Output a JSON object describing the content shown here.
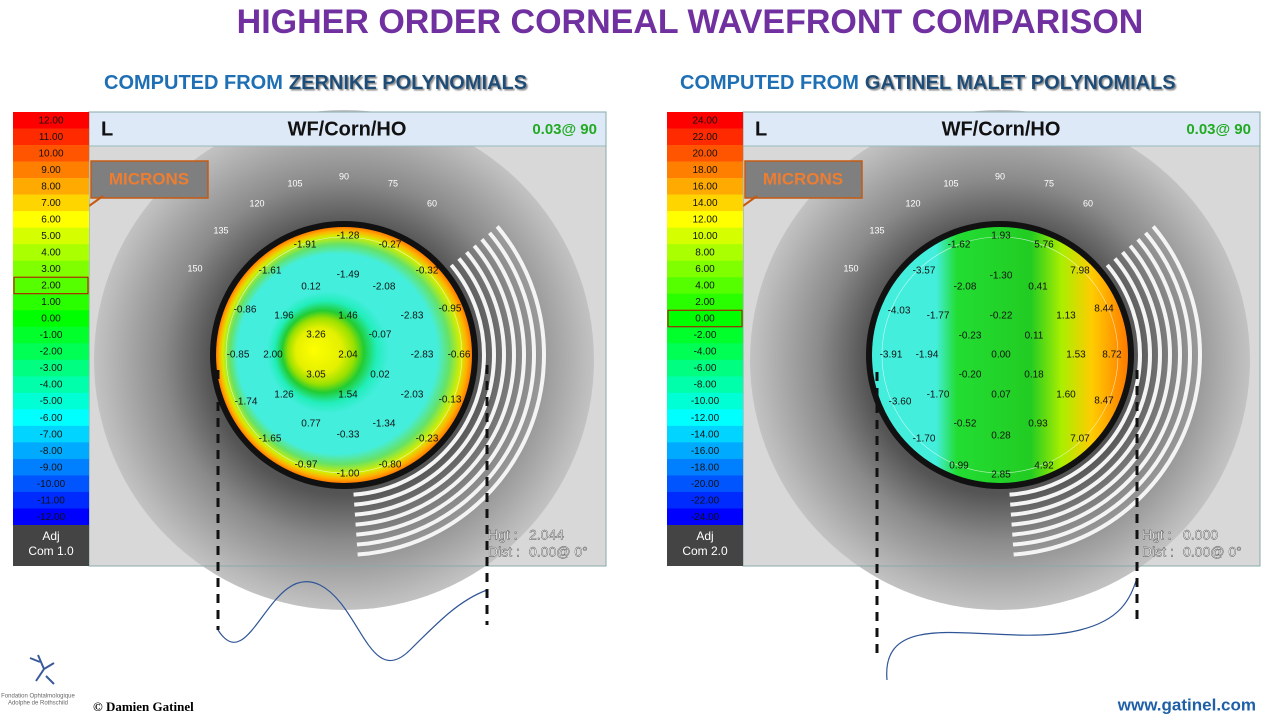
{
  "title": "HIGHER ORDER CORNEAL WAVEFRONT COMPARISON",
  "panels": [
    {
      "heading": "COMPUTED FROM",
      "heading_emph": "ZERNIKE POLYNOMIALS",
      "eye": "L",
      "map_label": "WF/Corn/HO",
      "axis": "0.03@ 90",
      "units": "MICRONS",
      "scale": [
        "12.00",
        "11.00",
        "10.00",
        "9.00",
        "8.00",
        "7.00",
        "6.00",
        "5.00",
        "4.00",
        "3.00",
        "2.00",
        "1.00",
        "0.00",
        "-1.00",
        "-2.00",
        "-3.00",
        "-4.00",
        "-5.00",
        "-6.00",
        "-7.00",
        "-8.00",
        "-9.00",
        "-10.00",
        "-11.00",
        "-12.00"
      ],
      "adj": "Adj",
      "com": "Com 1.0",
      "hgt_label": "Hgt :",
      "hgt": "2.044",
      "dist_label": "Dist :",
      "dist": "0.00@ 0°",
      "angles": [
        "105",
        "90",
        "75",
        "120",
        "60",
        "135",
        "150"
      ],
      "values": [
        "-1.28",
        "-1.91",
        "-0.27",
        "-1.61",
        "-1.49",
        "-0.32",
        "0.12",
        "-2.08",
        "-0.86",
        "1.96",
        "1.46",
        "-2.83",
        "-0.95",
        "3.26",
        "-0.07",
        "-0.85",
        "2.00",
        "2.04",
        "-2.83",
        "-0.66",
        "3.05",
        "0.02",
        "-1.74",
        "1.26",
        "1.54",
        "-2.03",
        "-0.13",
        "0.77",
        "-0.33",
        "-1.34",
        "-1.65",
        "-0.23",
        "-0.97",
        "-1.00",
        "-0.80"
      ]
    },
    {
      "heading": "COMPUTED FROM",
      "heading_emph": "GATINEL MALET POLYNOMIALS",
      "eye": "L",
      "map_label": "WF/Corn/HO",
      "axis": "0.03@ 90",
      "units": "MICRONS",
      "scale": [
        "24.00",
        "22.00",
        "20.00",
        "18.00",
        "16.00",
        "14.00",
        "12.00",
        "10.00",
        "8.00",
        "6.00",
        "4.00",
        "2.00",
        "0.00",
        "-2.00",
        "-4.00",
        "-6.00",
        "-8.00",
        "-10.00",
        "-12.00",
        "-14.00",
        "-16.00",
        "-18.00",
        "-20.00",
        "-22.00",
        "-24.00"
      ],
      "adj": "Adj",
      "com": "Com 2.0",
      "hgt_label": "Hgt :",
      "hgt": "0.000",
      "dist_label": "Dist :",
      "dist": "0.00@ 0°",
      "angles": [
        "105",
        "90",
        "75",
        "120",
        "60",
        "135",
        "150"
      ],
      "values": [
        "1.93",
        "-1.62",
        "5.76",
        "-3.57",
        "-1.30",
        "7.98",
        "-2.08",
        "0.41",
        "-4.03",
        "-1.77",
        "-0.22",
        "1.13",
        "8.44",
        "-0.23",
        "0.11",
        "-3.91",
        "-1.94",
        "0.00",
        "1.53",
        "8.72",
        "-0.20",
        "0.18",
        "-3.60",
        "-1.70",
        "0.07",
        "1.60",
        "8.47",
        "-0.52",
        "0.93",
        "-1.70",
        "0.28",
        "7.07",
        "0.99",
        "2.85",
        "4.92"
      ]
    }
  ],
  "footer": {
    "logo": [
      "Fondation Ophtalmologique",
      "Adolphe de Rothschild"
    ],
    "copyright": "© Damien Gatinel",
    "website": "www.gatinel.com"
  }
}
